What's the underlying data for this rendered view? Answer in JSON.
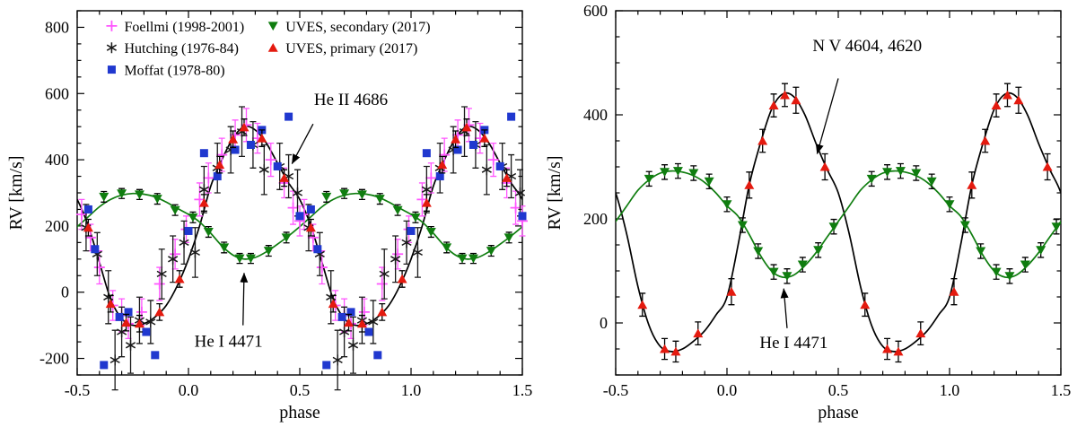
{
  "figure": {
    "description": "Radial velocity vs phase, two panels"
  },
  "chart_data": [
    {
      "id": "left",
      "type": "scatter",
      "xlabel": "phase",
      "ylabel": "RV [km/s]",
      "xlim": [
        -0.5,
        1.5
      ],
      "ylim": [
        -250,
        850
      ],
      "xticks": [
        -0.5,
        0.0,
        0.5,
        1.0,
        1.5
      ],
      "xtick_labels": [
        "-0.5",
        "0.0",
        "0.5",
        "1.0",
        "1.5"
      ],
      "yticks": [
        -200,
        0,
        200,
        400,
        600,
        800
      ],
      "ytick_labels": [
        "-200",
        "0",
        "200",
        "400",
        "600",
        "800"
      ],
      "x_minor_step": 0.1,
      "y_minor_step": 50,
      "curves": [
        {
          "name": "primary-orbit-fit",
          "color": "#000000",
          "phase_step": 0.05,
          "values": [
            100,
            200,
            320,
            400,
            465,
            500,
            490,
            450,
            390,
            330,
            280,
            200,
            90,
            -20,
            -80,
            -100,
            -95,
            -75,
            -40,
            20
          ]
        },
        {
          "name": "secondary-orbit-fit",
          "color": "#0f7d0f",
          "phase_step": 0.05,
          "values": [
            235,
            212,
            178,
            140,
            112,
            100,
            105,
            122,
            145,
            170,
            198,
            228,
            258,
            280,
            293,
            298,
            296,
            288,
            272,
            253
          ]
        }
      ],
      "series": [
        {
          "name": "Foellmi (1998-2001)",
          "marker": "plus",
          "color": "#ff55ff",
          "errcolor": "#ff55ff",
          "points": [
            [
              -0.48,
              235,
              45
            ],
            [
              -0.44,
              165,
              40
            ],
            [
              -0.4,
              75,
              50
            ],
            [
              -0.34,
              -40,
              45
            ],
            [
              -0.3,
              -70,
              50
            ],
            [
              -0.27,
              -95,
              45
            ],
            [
              -0.21,
              -60,
              40
            ],
            [
              -0.13,
              25,
              50
            ],
            [
              -0.06,
              115,
              45
            ],
            [
              -0.01,
              190,
              40
            ],
            [
              0.05,
              280,
              50
            ],
            [
              0.09,
              345,
              45
            ],
            [
              0.15,
              415,
              50
            ],
            [
              0.21,
              475,
              45
            ],
            [
              0.26,
              505,
              50
            ],
            [
              0.31,
              465,
              45
            ],
            [
              0.37,
              400,
              50
            ],
            [
              0.43,
              330,
              45
            ],
            [
              0.47,
              255,
              50
            ],
            [
              0.5,
              215,
              45
            ]
          ]
        },
        {
          "name": "Hutching (1976-84)",
          "marker": "asterisk",
          "color": "#1a1a1a",
          "errcolor": "#1a1a1a",
          "points": [
            [
              -0.46,
              195,
              70
            ],
            [
              -0.41,
              115,
              65
            ],
            [
              -0.36,
              -15,
              80
            ],
            [
              -0.33,
              -205,
              90
            ],
            [
              -0.3,
              -120,
              75
            ],
            [
              -0.26,
              -160,
              85
            ],
            [
              -0.22,
              -85,
              70
            ],
            [
              -0.17,
              -90,
              65
            ],
            [
              -0.12,
              55,
              75
            ],
            [
              -0.07,
              100,
              70
            ],
            [
              -0.02,
              150,
              65
            ],
            [
              0.03,
              120,
              75
            ],
            [
              0.07,
              310,
              70
            ],
            [
              0.13,
              375,
              75
            ],
            [
              0.19,
              430,
              70
            ],
            [
              0.24,
              485,
              75
            ],
            [
              0.29,
              445,
              70
            ],
            [
              0.34,
              370,
              75
            ],
            [
              0.41,
              380,
              70
            ],
            [
              0.45,
              350,
              65
            ],
            [
              0.49,
              300,
              70
            ]
          ]
        },
        {
          "name": "Moffat (1978-80)",
          "marker": "square",
          "color": "#2038cf",
          "errcolor": "#2038cf",
          "points": [
            [
              -0.45,
              250,
              0
            ],
            [
              -0.42,
              130,
              0
            ],
            [
              -0.38,
              -220,
              0
            ],
            [
              -0.31,
              -75,
              0
            ],
            [
              -0.27,
              -60,
              0
            ],
            [
              -0.19,
              -120,
              0
            ],
            [
              -0.15,
              -190,
              0
            ],
            [
              0.0,
              185,
              0
            ],
            [
              0.07,
              420,
              0
            ],
            [
              0.13,
              350,
              0
            ],
            [
              0.21,
              430,
              0
            ],
            [
              0.28,
              445,
              0
            ],
            [
              0.33,
              490,
              0
            ],
            [
              0.4,
              380,
              0
            ],
            [
              0.45,
              530,
              0
            ],
            [
              0.5,
              230,
              0
            ]
          ]
        },
        {
          "name": "UVES, secondary (2017)",
          "marker": "triangle-down",
          "color": "#0f7d0f",
          "errcolor": "#000000",
          "points": [
            [
              -0.38,
              288,
              16
            ],
            [
              -0.3,
              298,
              15
            ],
            [
              -0.22,
              295,
              15
            ],
            [
              -0.14,
              282,
              16
            ],
            [
              -0.06,
              248,
              16
            ],
            [
              0.02,
              226,
              16
            ],
            [
              0.09,
              182,
              16
            ],
            [
              0.16,
              135,
              16
            ],
            [
              0.23,
              102,
              15
            ],
            [
              0.28,
              102,
              15
            ],
            [
              0.36,
              125,
              16
            ],
            [
              0.44,
              165,
              16
            ]
          ]
        },
        {
          "name": "UVES, primary (2017)",
          "marker": "triangle-up",
          "color": "#e41a0f",
          "errcolor": "#000000",
          "points": [
            [
              -0.45,
              195,
              25
            ],
            [
              -0.35,
              -35,
              25
            ],
            [
              -0.28,
              -92,
              25
            ],
            [
              -0.22,
              -95,
              25
            ],
            [
              -0.13,
              -60,
              25
            ],
            [
              -0.04,
              40,
              25
            ],
            [
              0.07,
              270,
              25
            ],
            [
              0.14,
              385,
              25
            ],
            [
              0.2,
              462,
              25
            ],
            [
              0.25,
              498,
              25
            ],
            [
              0.33,
              465,
              25
            ],
            [
              0.43,
              345,
              25
            ]
          ]
        }
      ],
      "legend": {
        "col_x": [
          -0.345,
          0.38
        ],
        "row_y": [
          788,
          722,
          656
        ],
        "entries": [
          [
            0,
            0,
            0
          ],
          [
            0,
            1,
            1
          ],
          [
            0,
            2,
            2
          ],
          [
            1,
            0,
            3
          ],
          [
            1,
            1,
            4
          ]
        ]
      },
      "annotations": [
        {
          "text": "He II 4686",
          "tx": 0.73,
          "ty": 565,
          "x1": 0.56,
          "y1": 508,
          "x2": 0.465,
          "y2": 388
        },
        {
          "text": "He I 4471",
          "tx": 0.18,
          "ty": -165,
          "x1": 0.245,
          "y1": -100,
          "x2": 0.25,
          "y2": 58
        }
      ]
    },
    {
      "id": "right",
      "type": "scatter",
      "xlabel": "phase",
      "ylabel": "RV [km/s]",
      "xlim": [
        -0.5,
        1.5
      ],
      "ylim": [
        -100,
        600
      ],
      "xticks": [
        -0.5,
        0.0,
        0.5,
        1.0,
        1.5
      ],
      "xtick_labels": [
        "-0.5",
        "0.0",
        "0.5",
        "1.0",
        "1.5"
      ],
      "yticks": [
        0,
        200,
        400,
        600
      ],
      "ytick_labels": [
        "0",
        "200",
        "400",
        "600"
      ],
      "x_minor_step": 0.1,
      "y_minor_step": 50,
      "curves": [
        {
          "name": "primary-orbit-fit",
          "color": "#000000",
          "phase_step": 0.05,
          "values": [
            50,
            150,
            265,
            345,
            410,
            440,
            435,
            400,
            345,
            295,
            250,
            170,
            70,
            -5,
            -45,
            -55,
            -50,
            -35,
            -15,
            15
          ]
        },
        {
          "name": "secondary-orbit-fit",
          "color": "#0f7d0f",
          "phase_step": 0.05,
          "values": [
            225,
            205,
            170,
            130,
            100,
            88,
            92,
            110,
            135,
            165,
            195,
            225,
            255,
            275,
            288,
            292,
            290,
            283,
            270,
            250
          ]
        }
      ],
      "series": [
        {
          "name": "UVES, secondary (2017)",
          "marker": "triangle-down",
          "color": "#0f7d0f",
          "errcolor": "#000000",
          "points": [
            [
              -0.35,
              277,
              14
            ],
            [
              -0.28,
              290,
              14
            ],
            [
              -0.22,
              292,
              14
            ],
            [
              -0.15,
              288,
              14
            ],
            [
              -0.08,
              272,
              14
            ],
            [
              0.0,
              228,
              14
            ],
            [
              0.07,
              188,
              14
            ],
            [
              0.14,
              138,
              14
            ],
            [
              0.21,
              98,
              14
            ],
            [
              0.27,
              90,
              14
            ],
            [
              0.34,
              112,
              14
            ],
            [
              0.41,
              140,
              14
            ],
            [
              0.48,
              185,
              14
            ]
          ]
        },
        {
          "name": "UVES, primary (2017)",
          "marker": "triangle-up",
          "color": "#e41a0f",
          "errcolor": "#000000",
          "points": [
            [
              -0.38,
              35,
              22
            ],
            [
              -0.28,
              -50,
              20
            ],
            [
              -0.23,
              -55,
              20
            ],
            [
              -0.13,
              -20,
              22
            ],
            [
              0.02,
              60,
              25
            ],
            [
              0.1,
              265,
              25
            ],
            [
              0.16,
              350,
              22
            ],
            [
              0.21,
              418,
              22
            ],
            [
              0.26,
              438,
              22
            ],
            [
              0.31,
              428,
              25
            ],
            [
              0.44,
              300,
              25
            ]
          ]
        }
      ],
      "legend": null,
      "annotations": [
        {
          "text": "N V 4604, 4620",
          "tx": 0.63,
          "ty": 522,
          "x1": 0.5,
          "y1": 470,
          "x2": 0.405,
          "y2": 325
        },
        {
          "text": "He I 4471",
          "tx": 0.3,
          "ty": -48,
          "x1": 0.27,
          "y1": -10,
          "x2": 0.255,
          "y2": 66
        }
      ]
    }
  ]
}
